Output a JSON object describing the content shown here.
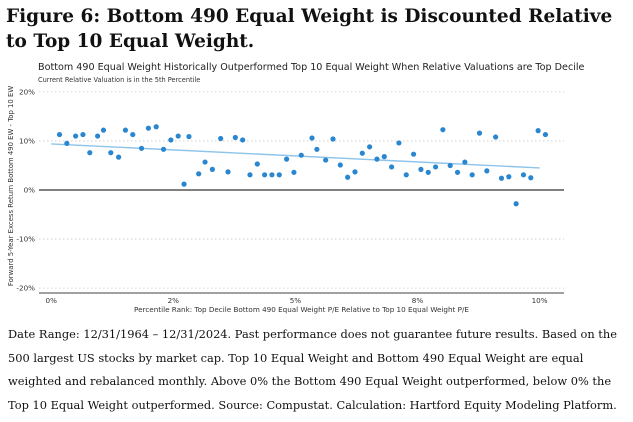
{
  "figure": {
    "title": "Figure 6: Bottom 490 Equal Weight is Discounted Relative to Top 10 Equal Weight."
  },
  "chart_data": {
    "type": "scatter",
    "title": "Bottom 490 Equal Weight Historically Outperformed Top 10 Equal Weight When Relative Valuations are Top Decile",
    "subtitle": "Current Relative Valuation is in the 5th Percentile",
    "xlabel": "Percentile Rank: Top Decile Bottom 490 Equal Weight P/E Relative to Top 10 Equal Weight P/E",
    "ylabel": "Forward 5-Year Excess Return Bottom 490 EW - Top 10 EW",
    "xlim": [
      -0.25,
      10.5
    ],
    "ylim": [
      -21,
      21
    ],
    "x_ticks": [
      0,
      2.5,
      5,
      7.5,
      10
    ],
    "x_tick_labels": [
      "0%",
      "2%",
      "5%",
      "8%",
      "10%"
    ],
    "y_ticks": [
      20,
      10,
      0,
      -10,
      -20
    ],
    "y_tick_labels": [
      "20%",
      "10%",
      "0%",
      "-10%",
      "-20%"
    ],
    "grid": "horizontal dotted",
    "legend": "none",
    "marker_color": "#2a86cf",
    "trend_color": "#8ec3ea",
    "trendline": {
      "x": [
        0,
        10
      ],
      "y": [
        9.4,
        4.5
      ]
    },
    "points": [
      {
        "x": 0.17,
        "y": 11.3
      },
      {
        "x": 0.32,
        "y": 9.5
      },
      {
        "x": 0.5,
        "y": 11.0
      },
      {
        "x": 0.65,
        "y": 11.3
      },
      {
        "x": 0.79,
        "y": 7.6
      },
      {
        "x": 0.95,
        "y": 11.0
      },
      {
        "x": 1.07,
        "y": 12.2
      },
      {
        "x": 1.22,
        "y": 7.6
      },
      {
        "x": 1.38,
        "y": 6.7
      },
      {
        "x": 1.52,
        "y": 12.2
      },
      {
        "x": 1.67,
        "y": 11.3
      },
      {
        "x": 1.85,
        "y": 8.5
      },
      {
        "x": 1.99,
        "y": 12.6
      },
      {
        "x": 2.15,
        "y": 12.9
      },
      {
        "x": 2.3,
        "y": 8.3
      },
      {
        "x": 2.45,
        "y": 10.2
      },
      {
        "x": 2.6,
        "y": 11.0
      },
      {
        "x": 2.72,
        "y": 1.2
      },
      {
        "x": 2.82,
        "y": 10.9
      },
      {
        "x": 3.02,
        "y": 3.3
      },
      {
        "x": 3.15,
        "y": 5.7
      },
      {
        "x": 3.3,
        "y": 4.2
      },
      {
        "x": 3.47,
        "y": 10.5
      },
      {
        "x": 3.62,
        "y": 3.7
      },
      {
        "x": 3.77,
        "y": 10.7
      },
      {
        "x": 3.92,
        "y": 10.2
      },
      {
        "x": 4.07,
        "y": 3.1
      },
      {
        "x": 4.22,
        "y": 5.3
      },
      {
        "x": 4.37,
        "y": 3.1
      },
      {
        "x": 4.52,
        "y": 3.1
      },
      {
        "x": 4.67,
        "y": 3.1
      },
      {
        "x": 4.82,
        "y": 6.3
      },
      {
        "x": 4.97,
        "y": 3.6
      },
      {
        "x": 5.12,
        "y": 7.1
      },
      {
        "x": 5.34,
        "y": 10.6
      },
      {
        "x": 5.44,
        "y": 8.3
      },
      {
        "x": 5.62,
        "y": 6.1
      },
      {
        "x": 5.77,
        "y": 10.4
      },
      {
        "x": 5.92,
        "y": 5.1
      },
      {
        "x": 6.07,
        "y": 2.6
      },
      {
        "x": 6.22,
        "y": 3.7
      },
      {
        "x": 6.37,
        "y": 7.5
      },
      {
        "x": 6.52,
        "y": 8.8
      },
      {
        "x": 6.67,
        "y": 6.3
      },
      {
        "x": 6.82,
        "y": 6.8
      },
      {
        "x": 6.97,
        "y": 4.7
      },
      {
        "x": 7.12,
        "y": 9.6
      },
      {
        "x": 7.27,
        "y": 3.1
      },
      {
        "x": 7.42,
        "y": 7.3
      },
      {
        "x": 7.57,
        "y": 4.2
      },
      {
        "x": 7.72,
        "y": 3.6
      },
      {
        "x": 7.87,
        "y": 4.7
      },
      {
        "x": 8.02,
        "y": 12.3
      },
      {
        "x": 8.17,
        "y": 5.0
      },
      {
        "x": 8.32,
        "y": 3.6
      },
      {
        "x": 8.47,
        "y": 5.7
      },
      {
        "x": 8.62,
        "y": 3.1
      },
      {
        "x": 8.77,
        "y": 11.6
      },
      {
        "x": 8.92,
        "y": 3.9
      },
      {
        "x": 9.1,
        "y": 10.8
      },
      {
        "x": 9.22,
        "y": 2.4
      },
      {
        "x": 9.37,
        "y": 2.7
      },
      {
        "x": 9.52,
        "y": -2.8
      },
      {
        "x": 9.67,
        "y": 3.1
      },
      {
        "x": 9.82,
        "y": 2.5
      },
      {
        "x": 9.97,
        "y": 12.1
      },
      {
        "x": 10.12,
        "y": 11.3
      }
    ]
  },
  "caption": {
    "text": "Date Range: 12/31/1964 – 12/31/2024. Past performance does not guarantee future results. Based on the 500 largest US stocks by market cap. Top 10 Equal Weight and Bottom 490 Equal Weight are equal weighted and rebalanced monthly. Above 0% the Bottom 490 Equal Weight outperformed, below 0% the Top 10 Equal Weight outperformed. Source: Compustat. Calculation: Hartford Equity Modeling Platform."
  }
}
